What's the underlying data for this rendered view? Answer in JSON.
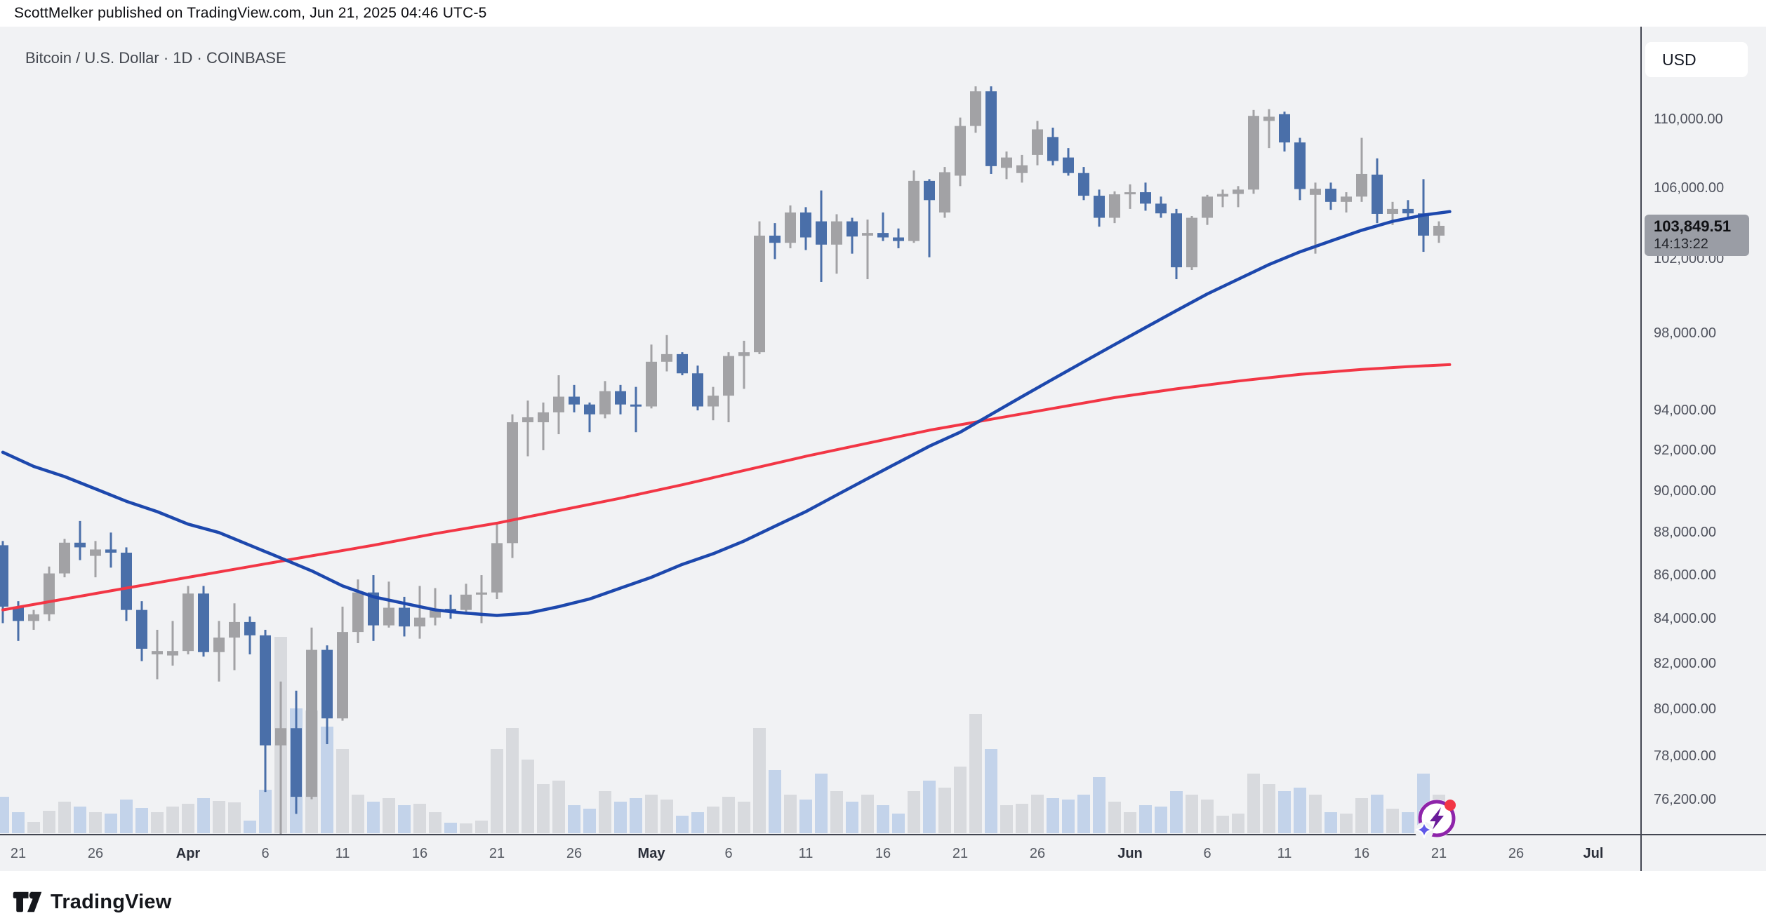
{
  "header": {
    "text": "ScottMelker published on TradingView.com, Jun 21, 2025 04:46 UTC-5"
  },
  "pane": {
    "title": "Bitcoin / U.S. Dollar · 1D · COINBASE"
  },
  "price_axis": {
    "currency": "USD",
    "labels": [
      {
        "text": "110,000.00",
        "value": 110000
      },
      {
        "text": "106,000.00",
        "value": 106000
      },
      {
        "text": "102,000.00",
        "value": 102000
      },
      {
        "text": "98,000.00",
        "value": 98000
      },
      {
        "text": "94,000.00",
        "value": 94000
      },
      {
        "text": "92,000.00",
        "value": 92000
      },
      {
        "text": "90,000.00",
        "value": 90000
      },
      {
        "text": "88,000.00",
        "value": 88000
      },
      {
        "text": "86,000.00",
        "value": 86000
      },
      {
        "text": "84,000.00",
        "value": 84000
      },
      {
        "text": "82,000.00",
        "value": 82000
      },
      {
        "text": "80,000.00",
        "value": 80000
      },
      {
        "text": "78,000.00",
        "value": 78000
      },
      {
        "text": "76,200.00",
        "value": 76200
      }
    ],
    "badge": {
      "price": "103,849.51",
      "time": "14:13:22",
      "value": 103849.51
    }
  },
  "time_axis": {
    "labels": [
      {
        "text": "21",
        "day": 0
      },
      {
        "text": "26",
        "day": 5
      },
      {
        "text": "Apr",
        "day": 11,
        "bold": true
      },
      {
        "text": "6",
        "day": 16
      },
      {
        "text": "11",
        "day": 21
      },
      {
        "text": "16",
        "day": 26
      },
      {
        "text": "21",
        "day": 31
      },
      {
        "text": "26",
        "day": 36
      },
      {
        "text": "May",
        "day": 41,
        "bold": true
      },
      {
        "text": "6",
        "day": 46
      },
      {
        "text": "11",
        "day": 51
      },
      {
        "text": "16",
        "day": 56
      },
      {
        "text": "21",
        "day": 61
      },
      {
        "text": "26",
        "day": 66
      },
      {
        "text": "Jun",
        "day": 72,
        "bold": true
      },
      {
        "text": "6",
        "day": 77
      },
      {
        "text": "11",
        "day": 82
      },
      {
        "text": "16",
        "day": 87
      },
      {
        "text": "21",
        "day": 92
      },
      {
        "text": "26",
        "day": 97
      },
      {
        "text": "Jul",
        "day": 102,
        "bold": true
      }
    ]
  },
  "chart_data": {
    "type": "candlestick",
    "symbol": "Bitcoin / U.S. Dollar",
    "interval": "1D",
    "exchange": "COINBASE",
    "scale": "log",
    "ylim": [
      74440,
      113000
    ],
    "last_price": 103849.51,
    "columns": [
      "date",
      "open",
      "high",
      "low",
      "close",
      "volume_rel"
    ],
    "candles": [
      [
        "Mar 20",
        87400,
        87600,
        83800,
        84550,
        52
      ],
      [
        "Mar 21",
        84550,
        84800,
        83000,
        83900,
        30
      ],
      [
        "Mar 22",
        83900,
        84400,
        83500,
        84200,
        16
      ],
      [
        "Mar 23",
        84200,
        86400,
        83900,
        86080,
        32
      ],
      [
        "Mar 24",
        86080,
        87700,
        85900,
        87520,
        45
      ],
      [
        "Mar 25",
        87520,
        88550,
        86700,
        87300,
        38
      ],
      [
        "Mar 26",
        86900,
        87600,
        85900,
        87200,
        30
      ],
      [
        "Mar 27",
        87200,
        88000,
        86350,
        87050,
        28
      ],
      [
        "Mar 28",
        87050,
        87300,
        83900,
        84400,
        48
      ],
      [
        "Mar 29",
        84400,
        84800,
        82100,
        82650,
        36
      ],
      [
        "Mar 30",
        82400,
        83500,
        81300,
        82550,
        30
      ],
      [
        "Mar 31",
        82350,
        83900,
        81900,
        82550,
        38
      ],
      [
        "Apr 1",
        82550,
        85500,
        82400,
        85150,
        42
      ],
      [
        "Apr 2",
        85150,
        85500,
        82300,
        82500,
        50
      ],
      [
        "Apr 3",
        82500,
        83900,
        81200,
        83150,
        46
      ],
      [
        "Apr 4",
        83150,
        84700,
        81700,
        83850,
        44
      ],
      [
        "Apr 5",
        83850,
        84100,
        82400,
        83250,
        18
      ],
      [
        "Apr 6",
        83250,
        83500,
        76500,
        78450,
        62
      ],
      [
        "Apr 7",
        78450,
        81200,
        74440,
        79180,
        280
      ],
      [
        "Apr 8",
        79180,
        80800,
        75600,
        76300,
        178
      ],
      [
        "Apr 9",
        76300,
        83600,
        76200,
        82600,
        175
      ],
      [
        "Apr 10",
        82600,
        82800,
        78500,
        79600,
        152
      ],
      [
        "Apr 11",
        79600,
        84550,
        79500,
        83400,
        120
      ],
      [
        "Apr 12",
        83400,
        85800,
        82900,
        85200,
        55
      ],
      [
        "Apr 13",
        85200,
        86000,
        83000,
        83700,
        45
      ],
      [
        "Apr 14",
        83700,
        85700,
        83600,
        84500,
        50
      ],
      [
        "Apr 15",
        84500,
        85000,
        83200,
        83650,
        40
      ],
      [
        "Apr 16",
        83650,
        85500,
        83100,
        84050,
        42
      ],
      [
        "Apr 17",
        84050,
        85400,
        83700,
        84450,
        30
      ],
      [
        "Apr 18",
        84450,
        85100,
        84000,
        84400,
        15
      ],
      [
        "Apr 19",
        84400,
        85600,
        84200,
        85100,
        14
      ],
      [
        "Apr 20",
        85100,
        86000,
        83800,
        85200,
        18
      ],
      [
        "Apr 21",
        85200,
        88500,
        84900,
        87500,
        120
      ],
      [
        "Apr 22",
        87500,
        93800,
        86800,
        93400,
        150
      ],
      [
        "Apr 23",
        93400,
        94500,
        91700,
        93650,
        105
      ],
      [
        "Apr 24",
        93400,
        94400,
        92000,
        93900,
        70
      ],
      [
        "Apr 25",
        93900,
        95800,
        92800,
        94700,
        75
      ],
      [
        "Apr 26",
        94700,
        95300,
        93900,
        94300,
        40
      ],
      [
        "Apr 27",
        94300,
        94400,
        92900,
        93800,
        35
      ],
      [
        "Apr 28",
        93800,
        95500,
        93600,
        94980,
        60
      ],
      [
        "Apr 29",
        94980,
        95300,
        93800,
        94300,
        45
      ],
      [
        "Apr 30",
        94300,
        95200,
        92900,
        94200,
        50
      ],
      [
        "May 1",
        94200,
        97400,
        94100,
        96500,
        55
      ],
      [
        "May 2",
        96500,
        97900,
        96000,
        96900,
        48
      ],
      [
        "May 3",
        96900,
        97000,
        95800,
        95900,
        25
      ],
      [
        "May 4",
        95900,
        96300,
        94000,
        94200,
        30
      ],
      [
        "May 5",
        94200,
        95200,
        93500,
        94750,
        38
      ],
      [
        "May 6",
        94750,
        97000,
        93400,
        96800,
        52
      ],
      [
        "May 7",
        96800,
        97600,
        95100,
        97000,
        45
      ],
      [
        "May 8",
        97000,
        104100,
        96900,
        103300,
        150
      ],
      [
        "May 9",
        103300,
        104000,
        102000,
        102900,
        90
      ],
      [
        "May 10",
        102900,
        105000,
        102600,
        104600,
        55
      ],
      [
        "May 11",
        104600,
        104900,
        102500,
        103200,
        48
      ],
      [
        "May 12",
        104100,
        105850,
        100750,
        102800,
        85
      ],
      [
        "May 13",
        102800,
        104500,
        101200,
        104100,
        60
      ],
      [
        "May 14",
        104100,
        104300,
        102300,
        103250,
        45
      ],
      [
        "May 15",
        103300,
        104200,
        100900,
        103450,
        55
      ],
      [
        "May 16",
        103450,
        104600,
        103000,
        103200,
        40
      ],
      [
        "May 17",
        103200,
        103700,
        102600,
        103000,
        28
      ],
      [
        "May 18",
        103000,
        107000,
        102900,
        106400,
        60
      ],
      [
        "May 19",
        106400,
        106500,
        102100,
        105300,
        75
      ],
      [
        "May 20",
        104600,
        107200,
        104300,
        106900,
        65
      ],
      [
        "May 21",
        106700,
        110100,
        106100,
        109600,
        95
      ],
      [
        "May 22",
        109600,
        111970,
        109200,
        111670,
        170
      ],
      [
        "May 23",
        111670,
        111970,
        106800,
        107250,
        120
      ],
      [
        "May 24",
        107150,
        108100,
        106500,
        107750,
        40
      ],
      [
        "May 25",
        106850,
        107900,
        106300,
        107300,
        42
      ],
      [
        "May 26",
        107900,
        109900,
        107300,
        109400,
        55
      ],
      [
        "May 27",
        108950,
        109500,
        107300,
        107550,
        50
      ],
      [
        "May 28",
        107750,
        108300,
        106700,
        106850,
        48
      ],
      [
        "May 29",
        106850,
        107200,
        105300,
        105550,
        55
      ],
      [
        "May 30",
        105550,
        105900,
        103800,
        104300,
        80
      ],
      [
        "May 31",
        104300,
        105800,
        104000,
        105630,
        45
      ],
      [
        "Jun 1",
        105630,
        106200,
        104800,
        105750,
        30
      ],
      [
        "Jun 2",
        105750,
        106300,
        104700,
        105100,
        40
      ],
      [
        "Jun 3",
        105100,
        105500,
        104300,
        104550,
        38
      ],
      [
        "Jun 4",
        104550,
        104800,
        100900,
        101550,
        60
      ],
      [
        "Jun 5",
        101550,
        104400,
        101400,
        104300,
        55
      ],
      [
        "Jun 6",
        104300,
        105600,
        103900,
        105500,
        48
      ],
      [
        "Jun 7",
        105500,
        105900,
        104900,
        105650,
        25
      ],
      [
        "Jun 8",
        105650,
        106100,
        104900,
        105900,
        28
      ],
      [
        "Jun 9",
        105900,
        110550,
        105660,
        110200,
        85
      ],
      [
        "Jun 10",
        109900,
        110600,
        108300,
        110150,
        70
      ],
      [
        "Jun 11",
        110300,
        110450,
        108100,
        108630,
        60
      ],
      [
        "Jun 12",
        108630,
        108900,
        105300,
        105930,
        65
      ],
      [
        "Jun 13",
        105600,
        106300,
        102300,
        105950,
        55
      ],
      [
        "Jun 14",
        105950,
        106300,
        104750,
        105200,
        30
      ],
      [
        "Jun 15",
        105200,
        105750,
        104600,
        105500,
        28
      ],
      [
        "Jun 16",
        105500,
        108900,
        105200,
        106800,
        50
      ],
      [
        "Jun 17",
        106760,
        107700,
        104000,
        104520,
        55
      ],
      [
        "Jun 18",
        104520,
        105200,
        103900,
        104800,
        35
      ],
      [
        "Jun 19",
        104800,
        105300,
        104200,
        104550,
        30
      ],
      [
        "Jun 20",
        104550,
        106500,
        102400,
        103300,
        85
      ],
      [
        "Jun 21",
        103300,
        104100,
        102900,
        103849.51,
        55
      ]
    ],
    "ma_fast": {
      "name": "fast-ma",
      "points_k": [
        [
          -1,
          91.9
        ],
        [
          1,
          91.2
        ],
        [
          3,
          90.7
        ],
        [
          5,
          90.1
        ],
        [
          7,
          89.5
        ],
        [
          9,
          89.0
        ],
        [
          11,
          88.4
        ],
        [
          13,
          88.0
        ],
        [
          15,
          87.4
        ],
        [
          17,
          86.8
        ],
        [
          19,
          86.2
        ],
        [
          21,
          85.5
        ],
        [
          23,
          85.0
        ],
        [
          25,
          84.7
        ],
        [
          27,
          84.4
        ],
        [
          29,
          84.25
        ],
        [
          31,
          84.15
        ],
        [
          33,
          84.25
        ],
        [
          35,
          84.55
        ],
        [
          37,
          84.9
        ],
        [
          39,
          85.4
        ],
        [
          41,
          85.9
        ],
        [
          43,
          86.5
        ],
        [
          45,
          87.0
        ],
        [
          47,
          87.6
        ],
        [
          49,
          88.3
        ],
        [
          51,
          89.0
        ],
        [
          53,
          89.8
        ],
        [
          55,
          90.6
        ],
        [
          57,
          91.4
        ],
        [
          59,
          92.2
        ],
        [
          61,
          92.9
        ],
        [
          63,
          93.8
        ],
        [
          65,
          94.7
        ],
        [
          67,
          95.6
        ],
        [
          69,
          96.5
        ],
        [
          71,
          97.4
        ],
        [
          73,
          98.3
        ],
        [
          75,
          99.2
        ],
        [
          77,
          100.1
        ],
        [
          79,
          100.9
        ],
        [
          81,
          101.7
        ],
        [
          83,
          102.4
        ],
        [
          85,
          103.0
        ],
        [
          87,
          103.6
        ],
        [
          89,
          104.1
        ],
        [
          91,
          104.45
        ],
        [
          92.7,
          104.65
        ]
      ]
    },
    "ma_slow": {
      "name": "slow-ma",
      "points_k": [
        [
          -1,
          84.4
        ],
        [
          3,
          84.9
        ],
        [
          7,
          85.4
        ],
        [
          11,
          85.9
        ],
        [
          15,
          86.4
        ],
        [
          19,
          86.9
        ],
        [
          23,
          87.4
        ],
        [
          27,
          87.95
        ],
        [
          31,
          88.45
        ],
        [
          35,
          89.05
        ],
        [
          39,
          89.65
        ],
        [
          43,
          90.3
        ],
        [
          47,
          91.0
        ],
        [
          51,
          91.7
        ],
        [
          55,
          92.35
        ],
        [
          59,
          93.0
        ],
        [
          63,
          93.55
        ],
        [
          67,
          94.1
        ],
        [
          71,
          94.65
        ],
        [
          75,
          95.1
        ],
        [
          79,
          95.5
        ],
        [
          83,
          95.85
        ],
        [
          87,
          96.1
        ],
        [
          90,
          96.25
        ],
        [
          92.7,
          96.35
        ]
      ]
    }
  },
  "footer": {
    "brand": "TradingView"
  },
  "icons": {
    "ai_icon": "tradingview-ai-icon",
    "logo": "tradingview-logo"
  },
  "colors": {
    "up": "#a2a2a5",
    "down": "#4a6fa9",
    "vol_up": "#d8dade",
    "vol_down": "#c3d3ea",
    "ma_fast": "#1d48ad",
    "ma_slow": "#f23645",
    "badge_bg": "#9a9da5",
    "axis_text": "#50535e",
    "axis_line": "#434651",
    "bg": "#f1f2f4"
  }
}
